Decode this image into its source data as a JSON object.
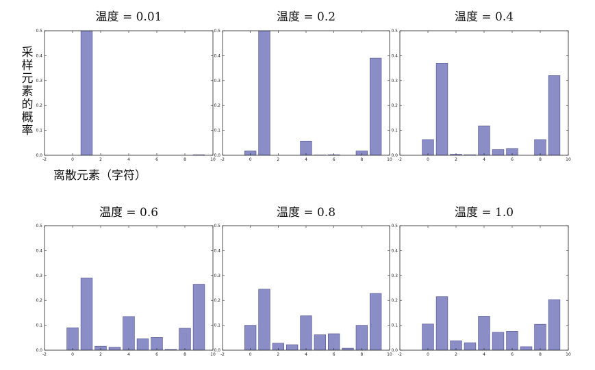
{
  "figure": {
    "ylabel": "采样元素的概率",
    "xlabel": "离散元素（字符）",
    "bar_color": "#8a8dc6",
    "bar_edge_color": "#4c4f8f"
  },
  "chart_data": [
    {
      "type": "bar",
      "title": "温度 = 0.01",
      "x": [
        0,
        1,
        2,
        3,
        4,
        5,
        6,
        7,
        8,
        9
      ],
      "values": [
        0.0,
        0.5,
        0.0,
        0.0,
        0.0,
        0.0,
        0.0,
        0.0,
        0.0,
        0.002
      ],
      "xlim": [
        -2,
        10
      ],
      "ylim": [
        0,
        0.5
      ],
      "xticks": [
        "-2",
        "0",
        "2",
        "4",
        "6",
        "8",
        "10"
      ],
      "yticks": [
        "0.0",
        "0.1",
        "0.2",
        "0.3",
        "0.4",
        "0.5"
      ],
      "grid": false
    },
    {
      "type": "bar",
      "title": "温度 = 0.2",
      "x": [
        0,
        1,
        2,
        3,
        4,
        5,
        6,
        7,
        8,
        9
      ],
      "values": [
        0.017,
        0.5,
        0.0,
        0.0,
        0.057,
        0.001,
        0.002,
        0.0,
        0.017,
        0.39
      ],
      "xlim": [
        -2,
        10
      ],
      "ylim": [
        0,
        0.5
      ],
      "xticks": [
        "-2",
        "0",
        "2",
        "4",
        "6",
        "8",
        "10"
      ],
      "yticks": [
        "0.0",
        "0.1",
        "0.2",
        "0.3",
        "0.4",
        "0.5"
      ],
      "grid": false
    },
    {
      "type": "bar",
      "title": "温度 = 0.4",
      "x": [
        0,
        1,
        2,
        3,
        4,
        5,
        6,
        7,
        8,
        9
      ],
      "values": [
        0.063,
        0.37,
        0.004,
        0.002,
        0.118,
        0.023,
        0.027,
        0.0,
        0.063,
        0.32
      ],
      "xlim": [
        -2,
        10
      ],
      "ylim": [
        0,
        0.5
      ],
      "xticks": [
        "-2",
        "0",
        "2",
        "4",
        "6",
        "8",
        "10"
      ],
      "yticks": [
        "0.0",
        "0.1",
        "0.2",
        "0.3",
        "0.4",
        "0.5"
      ],
      "grid": false
    },
    {
      "type": "bar",
      "title": "温度 = 0.6",
      "x": [
        0,
        1,
        2,
        3,
        4,
        5,
        6,
        7,
        8,
        9
      ],
      "values": [
        0.09,
        0.29,
        0.016,
        0.012,
        0.135,
        0.046,
        0.051,
        0.003,
        0.088,
        0.265
      ],
      "xlim": [
        -2,
        10
      ],
      "ylim": [
        0,
        0.5
      ],
      "xticks": [
        "-2",
        "0",
        "2",
        "4",
        "6",
        "8",
        "10"
      ],
      "yticks": [
        "0.0",
        "0.1",
        "0.2",
        "0.3",
        "0.4",
        "0.5"
      ],
      "grid": false
    },
    {
      "type": "bar",
      "title": "温度 = 0.8",
      "x": [
        0,
        1,
        2,
        3,
        4,
        5,
        6,
        7,
        8,
        9
      ],
      "values": [
        0.1,
        0.245,
        0.028,
        0.022,
        0.138,
        0.062,
        0.066,
        0.008,
        0.1,
        0.228
      ],
      "xlim": [
        -2,
        10
      ],
      "ylim": [
        0,
        0.5
      ],
      "xticks": [
        "-2",
        "0",
        "2",
        "4",
        "6",
        "8",
        "10"
      ],
      "yticks": [
        "0.0",
        "0.1",
        "0.2",
        "0.3",
        "0.4",
        "0.5"
      ],
      "grid": false
    },
    {
      "type": "bar",
      "title": "温度 = 1.0",
      "x": [
        0,
        1,
        2,
        3,
        4,
        5,
        6,
        7,
        8,
        9
      ],
      "values": [
        0.105,
        0.215,
        0.038,
        0.03,
        0.136,
        0.072,
        0.076,
        0.014,
        0.104,
        0.203
      ],
      "xlim": [
        -2,
        10
      ],
      "ylim": [
        0,
        0.5
      ],
      "xticks": [
        "-2",
        "0",
        "2",
        "4",
        "6",
        "8",
        "10"
      ],
      "yticks": [
        "0.0",
        "0.1",
        "0.2",
        "0.3",
        "0.4",
        "0.5"
      ],
      "grid": false
    }
  ]
}
